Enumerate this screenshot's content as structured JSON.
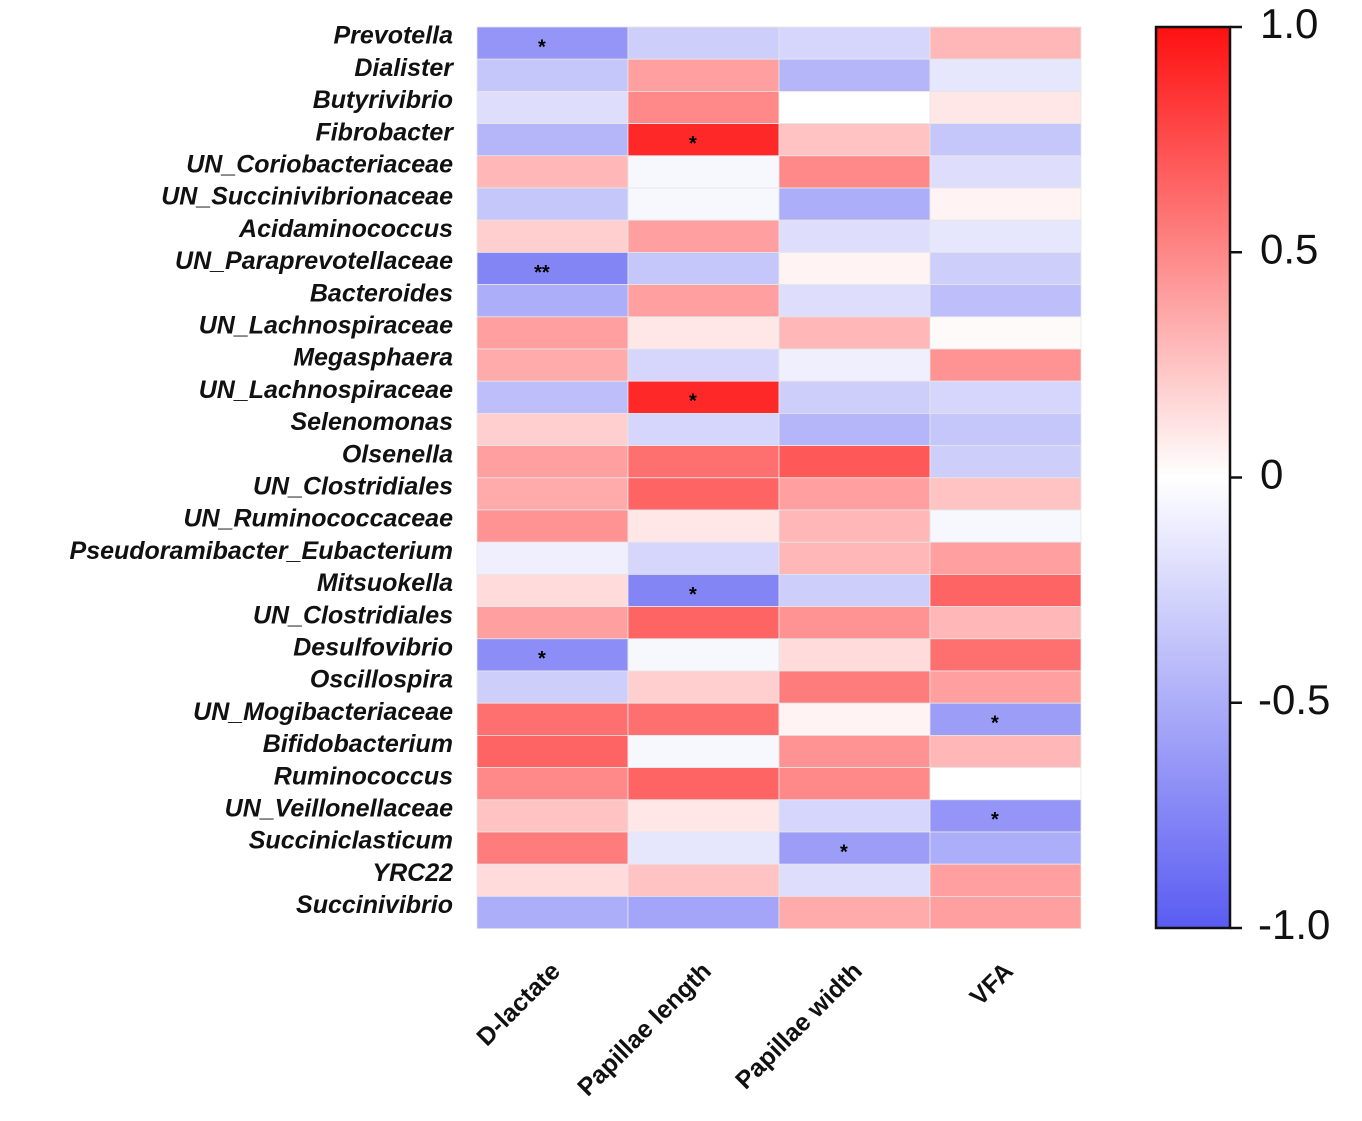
{
  "chart_data": {
    "type": "heatmap",
    "rows": [
      "Prevotella",
      "Dialister",
      "Butyrivibrio",
      "Fibrobacter",
      "UN_Coriobacteriaceae",
      "UN_Succinivibrionaceae",
      "Acidaminococcus",
      "UN_Paraprevotellaceae",
      "Bacteroides",
      "UN_Lachnospiraceae",
      "Megasphaera",
      "UN_Lachnospiraceae",
      "Selenomonas",
      "Olsenella",
      "UN_Clostridiales",
      "UN_Ruminococcaceae",
      "Pseudoramibacter_Eubacterium",
      "Mitsuokella",
      "UN_Clostridiales",
      "Desulfovibrio",
      "Oscillospira",
      "UN_Mogibacteriaceae",
      "Bifidobacterium",
      "Ruminococcus",
      "UN_Veillonellaceae",
      "Succiniclasticum",
      "YRC22",
      "Succinivibrio"
    ],
    "columns": [
      "D-lactate",
      "Papillae length",
      "Papillae width",
      "VFA"
    ],
    "values": [
      [
        -0.65,
        -0.3,
        -0.25,
        0.3
      ],
      [
        -0.35,
        0.4,
        -0.45,
        -0.15
      ],
      [
        -0.2,
        0.5,
        0.0,
        0.1
      ],
      [
        -0.45,
        0.9,
        0.25,
        -0.35
      ],
      [
        0.3,
        -0.05,
        0.5,
        -0.2
      ],
      [
        -0.35,
        -0.05,
        -0.5,
        0.05
      ],
      [
        0.2,
        0.4,
        -0.2,
        -0.15
      ],
      [
        -0.75,
        -0.35,
        0.05,
        -0.3
      ],
      [
        -0.5,
        0.4,
        -0.2,
        -0.4
      ],
      [
        0.4,
        0.1,
        0.3,
        0.02
      ],
      [
        0.35,
        -0.25,
        -0.1,
        0.45
      ],
      [
        -0.4,
        0.9,
        -0.3,
        -0.25
      ],
      [
        0.2,
        -0.25,
        -0.45,
        -0.35
      ],
      [
        0.4,
        0.6,
        0.7,
        -0.3
      ],
      [
        0.35,
        0.65,
        0.4,
        0.25
      ],
      [
        0.45,
        0.1,
        0.3,
        -0.05
      ],
      [
        -0.1,
        -0.25,
        0.3,
        0.4
      ],
      [
        0.15,
        -0.75,
        -0.3,
        0.65
      ],
      [
        0.4,
        0.65,
        0.45,
        0.3
      ],
      [
        -0.7,
        -0.05,
        0.15,
        0.6
      ],
      [
        -0.3,
        0.2,
        0.55,
        0.4
      ],
      [
        0.6,
        0.6,
        0.05,
        -0.6
      ],
      [
        0.65,
        -0.05,
        0.45,
        0.3
      ],
      [
        0.5,
        0.65,
        0.5,
        0.0
      ],
      [
        0.25,
        0.1,
        -0.25,
        -0.65
      ],
      [
        0.55,
        -0.15,
        -0.6,
        -0.5
      ],
      [
        0.15,
        0.25,
        -0.2,
        0.4
      ],
      [
        -0.5,
        -0.55,
        0.35,
        0.4
      ]
    ],
    "significance": [
      {
        "row": 0,
        "col": 0,
        "mark": "*"
      },
      {
        "row": 3,
        "col": 1,
        "mark": "*"
      },
      {
        "row": 7,
        "col": 0,
        "mark": "**"
      },
      {
        "row": 11,
        "col": 1,
        "mark": "*"
      },
      {
        "row": 17,
        "col": 1,
        "mark": "*"
      },
      {
        "row": 19,
        "col": 0,
        "mark": "*"
      },
      {
        "row": 21,
        "col": 3,
        "mark": "*"
      },
      {
        "row": 24,
        "col": 3,
        "mark": "*"
      },
      {
        "row": 25,
        "col": 2,
        "mark": "*"
      }
    ],
    "colorbar": {
      "min": -1.0,
      "max": 1.0,
      "ticks": [
        {
          "value": 1.0,
          "label": "1.0"
        },
        {
          "value": 0.5,
          "label": "0.5"
        },
        {
          "value": 0,
          "label": "0"
        },
        {
          "value": -0.5,
          "label": "-0.5"
        },
        {
          "value": -1.0,
          "label": "-1.0"
        }
      ],
      "colors": {
        "low": "#5a5cf2",
        "mid": "#ffffff",
        "high": "#fe1010"
      }
    }
  }
}
